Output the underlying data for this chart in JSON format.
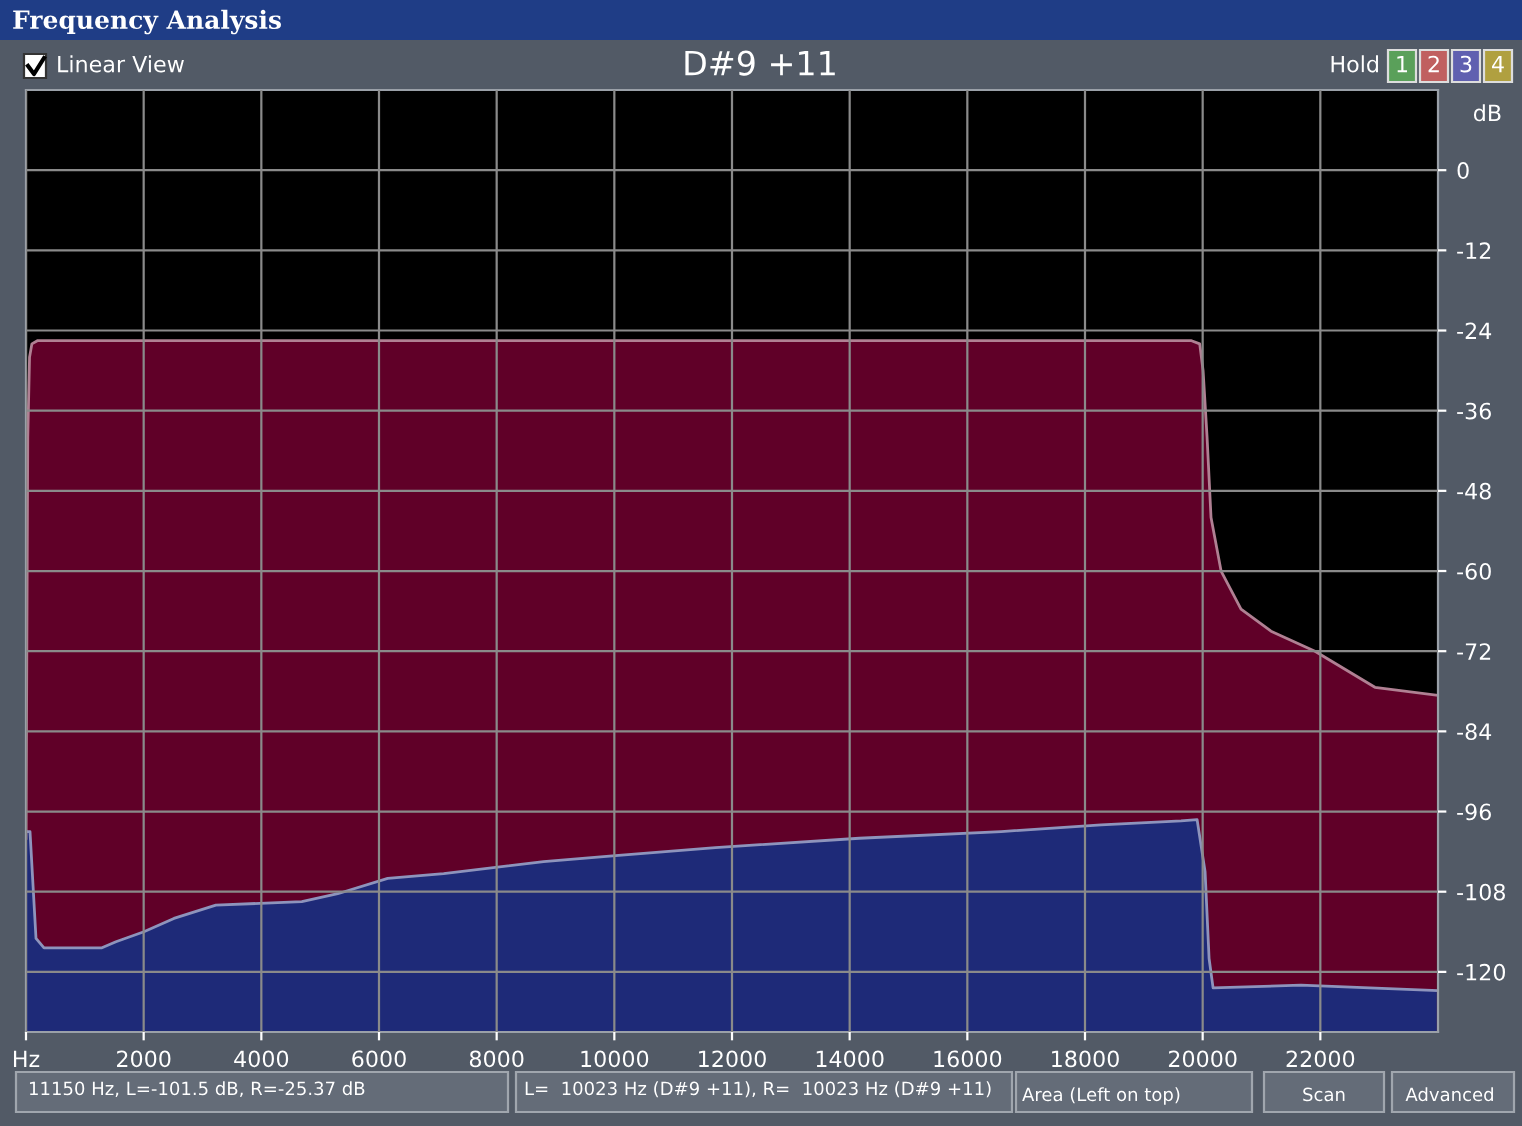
{
  "chart_data": {
    "type": "area",
    "title": "Frequency Analysis",
    "subtitle": "D#9 +11",
    "ylabel": "dB",
    "annotations": [
      "Linear View",
      "Hold",
      "1",
      "2",
      "3",
      "4",
      "11150 Hz, L=-101.5 dB, R=-25.37 dB",
      "L=  10023 Hz (D#9 +11), R=  10023 Hz (D#9 +11)",
      "Area (Left on top)",
      "Scan",
      "Advanced"
    ],
    "series": [
      {
        "color": "#600028",
        "x": [
          0,
          30,
          60,
          100,
          200,
          5000,
          10000,
          15000,
          19800,
          19950,
          20007,
          20075,
          20142,
          20313,
          20652,
          21162,
          21909,
          22928,
          23980
        ],
        "values": [
          -100,
          -40,
          -28,
          -26,
          -25.5,
          -25.5,
          -25.5,
          -25.5,
          -25.5,
          -26,
          -30,
          -40,
          -52,
          -60,
          -65.7,
          -69,
          -72,
          -77.4,
          -78.6
        ]
      },
      {
        "color": "#1e2a78",
        "x": [
          0,
          68,
          170,
          306,
          1291,
          1529,
          2004,
          2514,
          3227,
          4688,
          5299,
          6148,
          7099,
          8798,
          10020,
          11719,
          14164,
          16576,
          18274,
          19633,
          19905,
          20041,
          20109,
          20177,
          21671,
          23980
        ],
        "values": [
          -99,
          -99,
          -115,
          -116.4,
          -116.4,
          -115.5,
          -114,
          -112,
          -110,
          -109.5,
          -108.3,
          -106,
          -105.3,
          -103.5,
          -102.6,
          -101.4,
          -100,
          -99,
          -98,
          -97.4,
          -97.2,
          -105,
          -118,
          -122.4,
          -122,
          -122.8
        ]
      }
    ],
    "xlim": [
      0,
      24000
    ],
    "ylim": [
      -129,
      12
    ],
    "xticks": [
      {
        "value": 0,
        "label": "Hz"
      },
      2000,
      4000,
      6000,
      8000,
      10000,
      12000,
      14000,
      16000,
      18000,
      20000,
      22000
    ],
    "yticks": [
      0,
      -12,
      -24,
      -36,
      -48,
      -60,
      -72,
      -84,
      -96,
      -108,
      -120
    ],
    "grid": true,
    "legend": false
  }
}
